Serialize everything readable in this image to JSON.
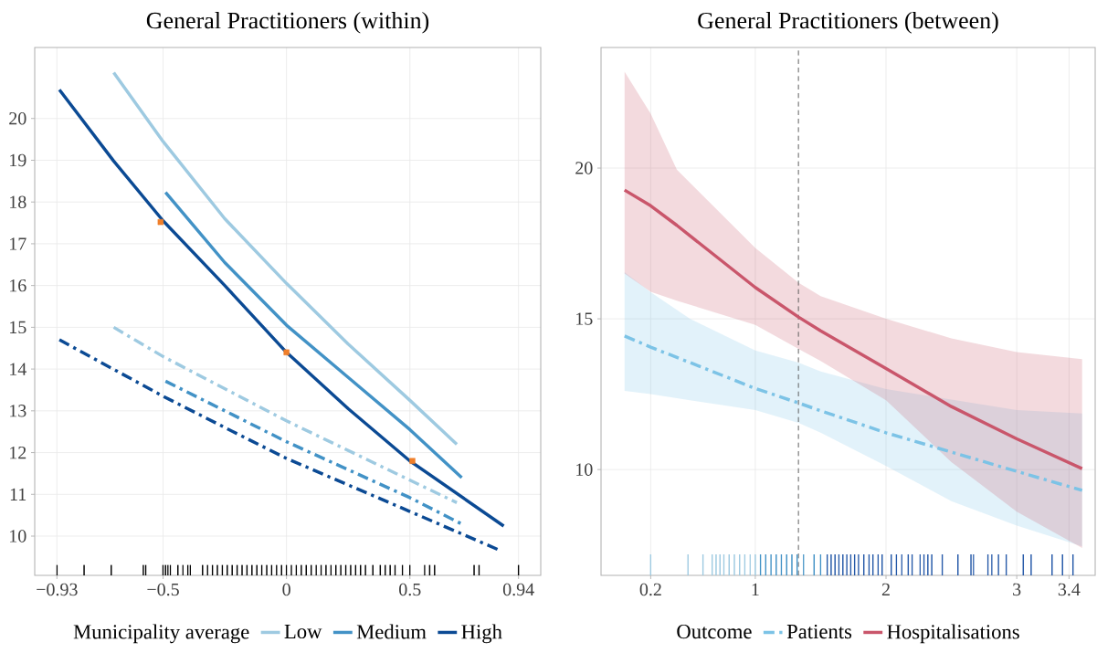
{
  "chart_data": [
    {
      "type": "line",
      "title": "General Practitioners (within)",
      "legend_title": "Municipality average",
      "legend": "bottom",
      "grid": true,
      "xlim": [
        -1.02,
        1.03
      ],
      "ylim": [
        9.06,
        21.7
      ],
      "xticks": [
        {
          "value": -0.93,
          "label": "−0.93"
        },
        {
          "value": -0.5,
          "label": "−0.5"
        },
        0,
        0.5,
        0.94
      ],
      "yticks": [
        10,
        11,
        12,
        13,
        14,
        15,
        16,
        17,
        18,
        19,
        20
      ],
      "series": [
        {
          "name": "Low",
          "line_style": "solid",
          "color": "#9ecae1",
          "x": [
            -0.7,
            -0.5,
            -0.25,
            0,
            0.25,
            0.5,
            0.69
          ],
          "values": [
            21.1,
            19.45,
            17.6,
            16.05,
            14.6,
            13.25,
            12.2
          ]
        },
        {
          "name": "Medium",
          "line_style": "solid",
          "color": "#4292c6",
          "x": [
            -0.49,
            -0.25,
            0,
            0.25,
            0.5,
            0.71
          ],
          "values": [
            18.23,
            16.55,
            15.05,
            13.8,
            12.55,
            11.4
          ]
        },
        {
          "name": "High",
          "line_style": "solid",
          "color": "#0b4a94",
          "x": [
            -0.92,
            -0.7,
            -0.5,
            -0.25,
            0,
            0.25,
            0.5,
            0.88
          ],
          "values": [
            20.69,
            18.98,
            17.55,
            16.0,
            14.4,
            13.05,
            11.8,
            10.24
          ]
        },
        {
          "line_style": "dashdot",
          "color": "#9ecae1",
          "x": [
            -0.7,
            -0.5,
            0,
            0.5,
            0.69
          ],
          "values": [
            15.0,
            14.3,
            12.76,
            11.34,
            10.8
          ]
        },
        {
          "line_style": "dashdot",
          "color": "#4292c6",
          "x": [
            -0.49,
            0,
            0.5,
            0.71
          ],
          "values": [
            13.71,
            12.26,
            10.92,
            10.29
          ]
        },
        {
          "line_style": "dashdot",
          "color": "#0b4a94",
          "x": [
            -0.92,
            -0.5,
            -0.25,
            0,
            0.5,
            0.86
          ],
          "values": [
            14.7,
            13.35,
            12.6,
            11.86,
            10.59,
            9.67
          ]
        },
        {
          "type": "scatter",
          "marker": "square",
          "color": "#f07f2a",
          "x": [
            -0.51,
            0,
            0.51
          ],
          "values": [
            17.52,
            14.4,
            11.8
          ]
        },
        {
          "type": "bar",
          "color": "#000000",
          "x": [
            -0.93,
            -0.82,
            -0.71,
            -0.58,
            -0.57,
            -0.5,
            -0.49,
            -0.48,
            -0.47,
            -0.44,
            -0.42,
            -0.4,
            -0.39,
            -0.34,
            -0.32,
            -0.3,
            -0.28,
            -0.26,
            -0.24,
            -0.22,
            -0.2,
            -0.18,
            -0.16,
            -0.14,
            -0.12,
            -0.1,
            -0.08,
            -0.06,
            -0.04,
            -0.02,
            0,
            0.02,
            0.04,
            0.06,
            0.08,
            0.1,
            0.12,
            0.14,
            0.16,
            0.18,
            0.2,
            0.22,
            0.24,
            0.26,
            0.28,
            0.3,
            0.32,
            0.35,
            0.38,
            0.4,
            0.42,
            0.44,
            0.47,
            0.5,
            0.56,
            0.58,
            0.6,
            0.76,
            0.78,
            0.94
          ],
          "values": [
            9.31,
            9.31,
            9.31,
            9.31,
            9.31,
            9.31,
            9.31,
            9.31,
            9.31,
            9.31,
            9.31,
            9.31,
            9.31,
            9.31,
            9.31,
            9.31,
            9.31,
            9.31,
            9.31,
            9.31,
            9.31,
            9.31,
            9.31,
            9.31,
            9.31,
            9.31,
            9.31,
            9.31,
            9.31,
            9.31,
            9.31,
            9.31,
            9.31,
            9.31,
            9.31,
            9.31,
            9.31,
            9.31,
            9.31,
            9.31,
            9.31,
            9.31,
            9.31,
            9.31,
            9.31,
            9.31,
            9.31,
            9.31,
            9.31,
            9.31,
            9.31,
            9.31,
            9.31,
            9.31,
            9.31,
            9.31,
            9.31,
            9.31,
            9.31,
            9.31
          ]
        }
      ]
    },
    {
      "type": "line",
      "title": "General Practitioners (between)",
      "legend_title": "Outcome",
      "legend": "bottom",
      "grid": true,
      "xlim": [
        -0.18,
        3.6
      ],
      "ylim": [
        6.49,
        24.0
      ],
      "xticks": [
        0.2,
        1,
        2,
        3,
        3.4
      ],
      "yticks": [
        10,
        15,
        20
      ],
      "ref_lines": [
        {
          "axis": "x",
          "value": 1.33,
          "color": "#555555",
          "line_style": "dashed"
        }
      ],
      "series": [
        {
          "name": "Patients",
          "line_style": "dashdot",
          "color": "#7cc3e6",
          "x": [
            0,
            0.2,
            0.5,
            1,
            1.33,
            1.5,
            2,
            2.5,
            3,
            3.5
          ],
          "values": [
            14.43,
            14.06,
            13.55,
            12.69,
            12.21,
            11.95,
            11.22,
            10.58,
            9.94,
            9.31
          ],
          "lower": [
            12.61,
            12.5,
            12.3,
            11.97,
            11.55,
            11.22,
            10.12,
            8.95,
            8.14,
            7.45
          ],
          "upper": [
            16.55,
            15.88,
            15.0,
            13.95,
            13.55,
            13.25,
            12.67,
            12.32,
            11.97,
            11.86
          ]
        },
        {
          "name": "Hospitalisations",
          "line_style": "solid",
          "color": "#c9566b",
          "x": [
            0,
            0.2,
            0.4,
            1,
            1.33,
            1.5,
            2,
            2.5,
            3,
            3.5
          ],
          "values": [
            19.27,
            18.75,
            18.1,
            16.04,
            15.06,
            14.6,
            13.35,
            12.09,
            11.02,
            10.03
          ],
          "lower": [
            16.5,
            15.9,
            15.6,
            14.8,
            14.0,
            13.6,
            12.3,
            10.25,
            8.6,
            7.4
          ],
          "upper": [
            23.2,
            21.8,
            19.95,
            17.35,
            16.2,
            15.75,
            15.0,
            14.35,
            13.9,
            13.66
          ]
        },
        {
          "type": "bar",
          "colors": [
            "#9ecae1",
            "#9ecae1",
            "#9ecae1",
            "#9ecae1",
            "#9ecae1",
            "#9ecae1",
            "#9ecae1",
            "#9ecae1",
            "#9ecae1",
            "#9ecae1",
            "#9ecae1",
            "#9ecae1",
            "#9ecae1",
            "#4292c6",
            "#4292c6",
            "#4292c6",
            "#4292c6",
            "#4292c6",
            "#4292c6",
            "#4292c6",
            "#4292c6",
            "#4292c6",
            "#4292c6",
            "#4292c6",
            "#2559a8",
            "#2559a8",
            "#2559a8",
            "#2559a8",
            "#2559a8",
            "#2559a8",
            "#2559a8",
            "#2559a8",
            "#2559a8",
            "#2559a8",
            "#2559a8",
            "#2559a8",
            "#2559a8",
            "#2559a8",
            "#2559a8",
            "#2559a8",
            "#2559a8",
            "#2559a8",
            "#2559a8",
            "#2559a8",
            "#2559a8",
            "#2559a8",
            "#2559a8",
            "#2559a8",
            "#2559a8",
            "#2559a8",
            "#2559a8",
            "#2559a8",
            "#2559a8",
            "#2559a8",
            "#2559a8",
            "#2559a8",
            "#2559a8",
            "#2559a8",
            "#2559a8",
            "#2559a8"
          ],
          "x": [
            0.2,
            0.485,
            0.6,
            0.67,
            0.7,
            0.73,
            0.76,
            0.8,
            0.84,
            0.88,
            0.92,
            0.96,
            1.0,
            1.04,
            1.08,
            1.12,
            1.16,
            1.2,
            1.24,
            1.28,
            1.32,
            1.37,
            1.45,
            1.5,
            1.55,
            1.58,
            1.61,
            1.64,
            1.67,
            1.7,
            1.73,
            1.76,
            1.79,
            1.83,
            1.87,
            1.9,
            1.94,
            1.97,
            2.04,
            2.08,
            2.12,
            2.17,
            2.2,
            2.26,
            2.29,
            2.32,
            2.35,
            2.43,
            2.55,
            2.65,
            2.67,
            2.78,
            2.81,
            2.86,
            2.92,
            3.05,
            3.11,
            3.27,
            3.35,
            3.43
          ],
          "values": [
            7.19,
            7.19,
            7.19,
            7.19,
            7.19,
            7.19,
            7.19,
            7.19,
            7.19,
            7.19,
            7.19,
            7.19,
            7.19,
            7.19,
            7.19,
            7.19,
            7.19,
            7.19,
            7.19,
            7.19,
            7.19,
            7.19,
            7.19,
            7.19,
            7.19,
            7.19,
            7.19,
            7.19,
            7.19,
            7.19,
            7.19,
            7.19,
            7.19,
            7.19,
            7.19,
            7.19,
            7.19,
            7.19,
            7.19,
            7.19,
            7.19,
            7.19,
            7.19,
            7.19,
            7.19,
            7.19,
            7.19,
            7.19,
            7.19,
            7.19,
            7.19,
            7.19,
            7.19,
            7.19,
            7.19,
            7.19,
            7.19,
            7.19,
            7.19,
            7.19
          ]
        }
      ]
    }
  ]
}
